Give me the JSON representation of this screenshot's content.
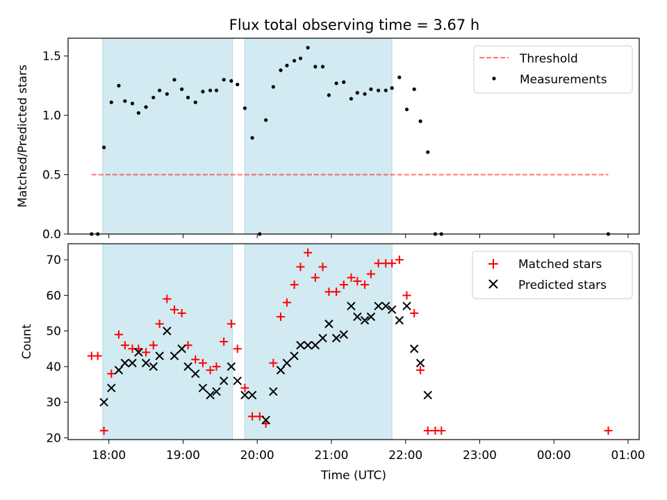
{
  "figure": {
    "title": "Flux total observing time = 3.67 h"
  },
  "colors": {
    "shade": "#add8e6",
    "threshold": "#ff0000",
    "measurement": "#000000",
    "matched": "#ff0000",
    "predicted": "#000000"
  },
  "chart_data": [
    {
      "type": "scatter",
      "title": "Flux total observing time = 3.67 h",
      "xlabel": "",
      "ylabel": "Matched/Predicted stars",
      "xlim": [
        "17:27",
        "01:09"
      ],
      "ylim": [
        0,
        1.65
      ],
      "yticks": [
        "0.0",
        "0.5",
        "1.0",
        "1.5"
      ],
      "legend": {
        "placement": "upper right",
        "entries": [
          "Threshold",
          "Measurements"
        ]
      },
      "shaded_intervals": [
        [
          "17:55",
          "19:40"
        ],
        [
          "19:50",
          "21:49"
        ]
      ],
      "threshold": {
        "name": "Threshold",
        "value": 0.5,
        "x_range": [
          "17:46",
          "00:44"
        ],
        "style": "dashed"
      },
      "series": [
        {
          "name": "Measurements",
          "marker": "dot",
          "points": [
            [
              "17:46",
              0
            ],
            [
              "17:51",
              0
            ],
            [
              "17:56",
              0.73
            ],
            [
              "18:02",
              1.11
            ],
            [
              "18:08",
              1.25
            ],
            [
              "18:13",
              1.12
            ],
            [
              "18:19",
              1.1
            ],
            [
              "18:24",
              1.02
            ],
            [
              "18:30",
              1.07
            ],
            [
              "18:36",
              1.15
            ],
            [
              "18:41",
              1.21
            ],
            [
              "18:47",
              1.18
            ],
            [
              "18:53",
              1.3
            ],
            [
              "18:59",
              1.22
            ],
            [
              "19:04",
              1.15
            ],
            [
              "19:10",
              1.11
            ],
            [
              "19:16",
              1.2
            ],
            [
              "19:22",
              1.21
            ],
            [
              "19:27",
              1.21
            ],
            [
              "19:33",
              1.3
            ],
            [
              "19:39",
              1.29
            ],
            [
              "19:44",
              1.26
            ],
            [
              "19:50",
              1.06
            ],
            [
              "19:56",
              0.81
            ],
            [
              "20:02",
              0
            ],
            [
              "20:07",
              0.96
            ],
            [
              "20:13",
              1.24
            ],
            [
              "20:19",
              1.38
            ],
            [
              "20:24",
              1.42
            ],
            [
              "20:30",
              1.46
            ],
            [
              "20:35",
              1.48
            ],
            [
              "20:41",
              1.57
            ],
            [
              "20:47",
              1.41
            ],
            [
              "20:53",
              1.41
            ],
            [
              "20:58",
              1.17
            ],
            [
              "21:04",
              1.27
            ],
            [
              "21:10",
              1.28
            ],
            [
              "21:16",
              1.14
            ],
            [
              "21:21",
              1.19
            ],
            [
              "21:27",
              1.18
            ],
            [
              "21:32",
              1.22
            ],
            [
              "21:38",
              1.21
            ],
            [
              "21:44",
              1.21
            ],
            [
              "21:49",
              1.23
            ],
            [
              "21:55",
              1.32
            ],
            [
              "22:01",
              1.05
            ],
            [
              "22:07",
              1.22
            ],
            [
              "22:12",
              0.95
            ],
            [
              "22:18",
              0.69
            ],
            [
              "22:24",
              0
            ],
            [
              "22:29",
              0
            ],
            [
              "00:44",
              0
            ]
          ]
        }
      ]
    },
    {
      "type": "scatter",
      "title": "",
      "xlabel": "Time (UTC)",
      "ylabel": "Count",
      "xlim": [
        "17:27",
        "01:09"
      ],
      "ylim": [
        19.5,
        74.5
      ],
      "yticks": [
        "20",
        "30",
        "40",
        "50",
        "60",
        "70"
      ],
      "xticks": [
        "18:00",
        "19:00",
        "20:00",
        "21:00",
        "22:00",
        "23:00",
        "00:00",
        "01:00"
      ],
      "legend": {
        "placement": "upper right",
        "entries": [
          "Matched stars",
          "Predicted stars"
        ]
      },
      "shaded_intervals": [
        [
          "17:55",
          "19:40"
        ],
        [
          "19:50",
          "21:49"
        ]
      ],
      "series": [
        {
          "name": "Matched stars",
          "marker": "plus",
          "points": [
            [
              "17:46",
              43
            ],
            [
              "17:51",
              43
            ],
            [
              "17:56",
              22
            ],
            [
              "18:02",
              38
            ],
            [
              "18:08",
              49
            ],
            [
              "18:13",
              46
            ],
            [
              "18:19",
              45
            ],
            [
              "18:24",
              45
            ],
            [
              "18:30",
              44
            ],
            [
              "18:36",
              46
            ],
            [
              "18:41",
              52
            ],
            [
              "18:47",
              59
            ],
            [
              "18:53",
              56
            ],
            [
              "18:59",
              55
            ],
            [
              "19:04",
              46
            ],
            [
              "19:10",
              42
            ],
            [
              "19:16",
              41
            ],
            [
              "19:22",
              39
            ],
            [
              "19:27",
              40
            ],
            [
              "19:33",
              47
            ],
            [
              "19:39",
              52
            ],
            [
              "19:44",
              45
            ],
            [
              "19:50",
              34
            ],
            [
              "19:56",
              26
            ],
            [
              "20:02",
              26
            ],
            [
              "20:07",
              24
            ],
            [
              "20:13",
              41
            ],
            [
              "20:19",
              54
            ],
            [
              "20:24",
              58
            ],
            [
              "20:30",
              63
            ],
            [
              "20:35",
              68
            ],
            [
              "20:41",
              72
            ],
            [
              "20:47",
              65
            ],
            [
              "20:53",
              68
            ],
            [
              "20:58",
              61
            ],
            [
              "21:04",
              61
            ],
            [
              "21:10",
              63
            ],
            [
              "21:16",
              65
            ],
            [
              "21:21",
              64
            ],
            [
              "21:27",
              63
            ],
            [
              "21:32",
              66
            ],
            [
              "21:38",
              69
            ],
            [
              "21:44",
              69
            ],
            [
              "21:49",
              69
            ],
            [
              "21:55",
              70
            ],
            [
              "22:01",
              60
            ],
            [
              "22:07",
              55
            ],
            [
              "22:12",
              39
            ],
            [
              "22:18",
              22
            ],
            [
              "22:24",
              22
            ],
            [
              "22:29",
              22
            ],
            [
              "00:44",
              22
            ]
          ]
        },
        {
          "name": "Predicted stars",
          "marker": "x",
          "points": [
            [
              "17:56",
              30
            ],
            [
              "18:02",
              34
            ],
            [
              "18:08",
              39
            ],
            [
              "18:13",
              41
            ],
            [
              "18:19",
              41
            ],
            [
              "18:24",
              44
            ],
            [
              "18:30",
              41
            ],
            [
              "18:36",
              40
            ],
            [
              "18:41",
              43
            ],
            [
              "18:47",
              50
            ],
            [
              "18:53",
              43
            ],
            [
              "18:59",
              45
            ],
            [
              "19:04",
              40
            ],
            [
              "19:10",
              38
            ],
            [
              "19:16",
              34
            ],
            [
              "19:22",
              32
            ],
            [
              "19:27",
              33
            ],
            [
              "19:33",
              36
            ],
            [
              "19:39",
              40
            ],
            [
              "19:44",
              36
            ],
            [
              "19:50",
              32
            ],
            [
              "19:56",
              32
            ],
            [
              "20:07",
              25
            ],
            [
              "20:13",
              33
            ],
            [
              "20:19",
              39
            ],
            [
              "20:24",
              41
            ],
            [
              "20:30",
              43
            ],
            [
              "20:35",
              46
            ],
            [
              "20:41",
              46
            ],
            [
              "20:47",
              46
            ],
            [
              "20:53",
              48
            ],
            [
              "20:58",
              52
            ],
            [
              "21:04",
              48
            ],
            [
              "21:10",
              49
            ],
            [
              "21:16",
              57
            ],
            [
              "21:21",
              54
            ],
            [
              "21:27",
              53
            ],
            [
              "21:32",
              54
            ],
            [
              "21:38",
              57
            ],
            [
              "21:44",
              57
            ],
            [
              "21:49",
              56
            ],
            [
              "21:55",
              53
            ],
            [
              "22:01",
              57
            ],
            [
              "22:07",
              45
            ],
            [
              "22:12",
              41
            ],
            [
              "22:18",
              32
            ]
          ]
        }
      ]
    }
  ]
}
